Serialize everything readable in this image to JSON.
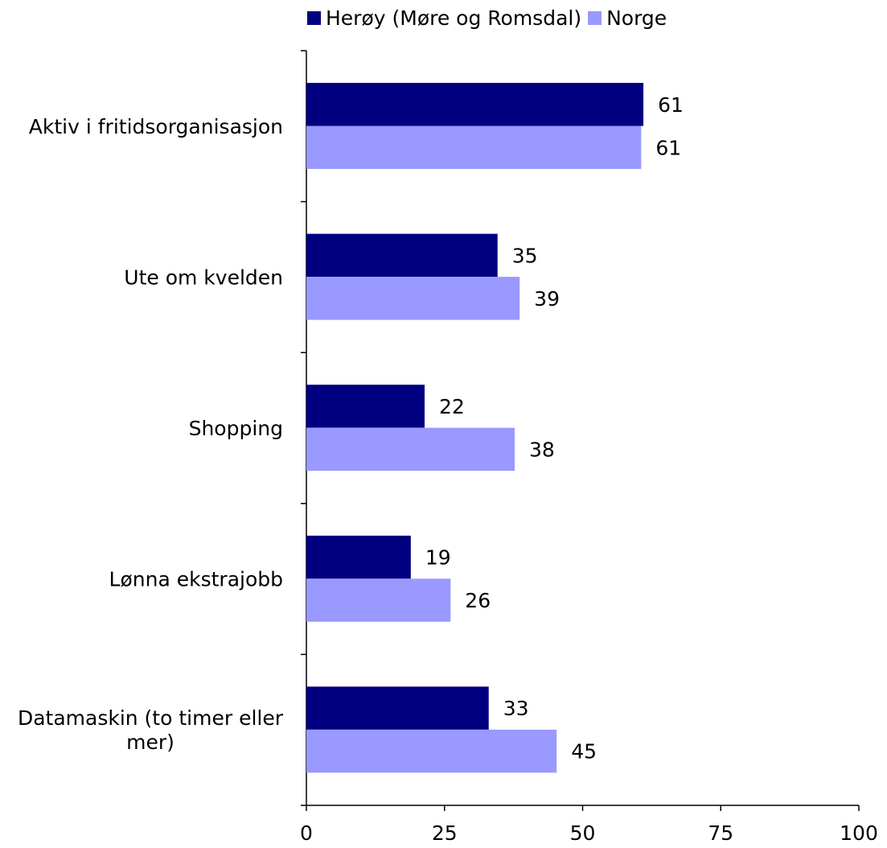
{
  "chart_data": {
    "type": "bar",
    "orientation": "horizontal",
    "categories": [
      "Aktiv i fritidsorganisasjon",
      "Ute om kvelden",
      "Shopping",
      "Lønna ekstrajobb",
      "Datamaskin (to timer eller mer)"
    ],
    "category_lines": [
      [
        "Aktiv i fritidsorganisasjon"
      ],
      [
        "Ute om kvelden"
      ],
      [
        "Shopping"
      ],
      [
        "Lønna ekstrajobb"
      ],
      [
        "Datamaskin (to timer eller",
        "mer)"
      ]
    ],
    "series": [
      {
        "name": "Herøy (Møre og Romsdal)",
        "color": "#000080",
        "values": [
          61,
          35,
          22,
          19,
          33
        ]
      },
      {
        "name": "Norge",
        "color": "#9999ff",
        "values": [
          61,
          39,
          38,
          26,
          45
        ]
      }
    ],
    "bar_lengths": [
      [
        61,
        34.6,
        21.4,
        18.9,
        33
      ],
      [
        60.6,
        38.6,
        37.7,
        26.1,
        45.3
      ]
    ],
    "xlim": [
      0,
      100
    ],
    "xticks": [
      0,
      25,
      50,
      75,
      100
    ],
    "grid": false,
    "legend_position": "top",
    "title": "",
    "xlabel": "",
    "ylabel": ""
  }
}
